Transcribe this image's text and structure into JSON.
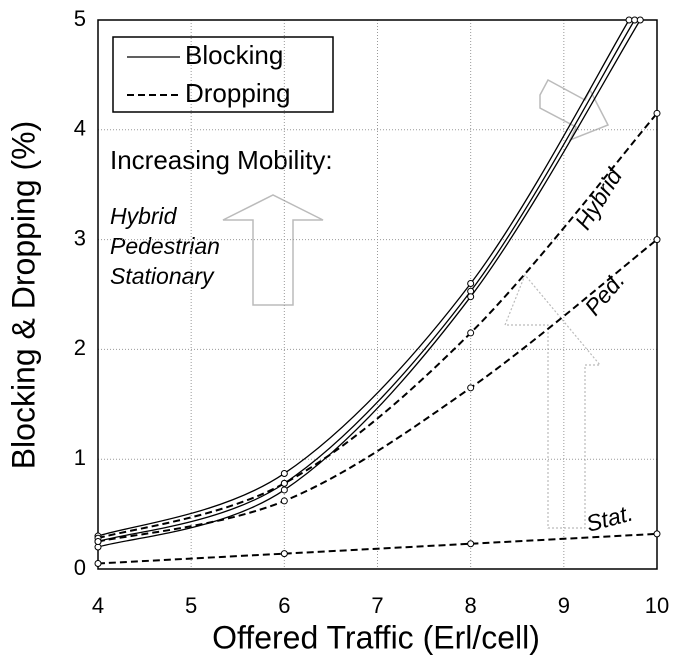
{
  "chart_data": {
    "type": "line",
    "xlabel": "Offered Traffic (Erl/cell)",
    "ylabel": "Blocking & Dropping (%)",
    "xlim": [
      4,
      10
    ],
    "ylim": [
      0,
      5
    ],
    "xticks": [
      4,
      5,
      6,
      7,
      8,
      9,
      10
    ],
    "yticks": [
      0,
      1,
      2,
      3,
      4,
      5
    ],
    "grid": true,
    "legend": [
      {
        "label": "Blocking",
        "dash": "solid"
      },
      {
        "label": "Dropping",
        "dash": "dashed"
      }
    ],
    "series": [
      {
        "dash": "solid",
        "color": "#000000",
        "x": [
          4,
          6,
          8,
          9.7
        ],
        "values": [
          0.3,
          0.87,
          2.6,
          5
        ]
      },
      {
        "dash": "solid",
        "color": "#000000",
        "x": [
          4,
          6,
          8,
          9.76
        ],
        "values": [
          0.25,
          0.78,
          2.53,
          5
        ]
      },
      {
        "dash": "solid",
        "color": "#000000",
        "x": [
          4,
          6,
          8,
          9.82
        ],
        "values": [
          0.2,
          0.72,
          2.48,
          5
        ]
      },
      {
        "name": "Hybrid",
        "dash": "dashed",
        "color": "#000000",
        "x": [
          4,
          6,
          8,
          10
        ],
        "values": [
          0.28,
          0.78,
          2.15,
          4.15
        ]
      },
      {
        "name": "Ped.",
        "dash": "dashed",
        "color": "#000000",
        "x": [
          4,
          6,
          8,
          10
        ],
        "values": [
          0.25,
          0.62,
          1.65,
          3.0
        ]
      },
      {
        "name": "Stat.",
        "dash": "dashed",
        "color": "#000000",
        "x": [
          4,
          6,
          8,
          10
        ],
        "values": [
          0.05,
          0.14,
          0.23,
          0.32
        ]
      }
    ],
    "annotations": [
      "Increasing Mobility:",
      "Hybrid",
      "Pedestrian",
      "Stationary"
    ]
  }
}
